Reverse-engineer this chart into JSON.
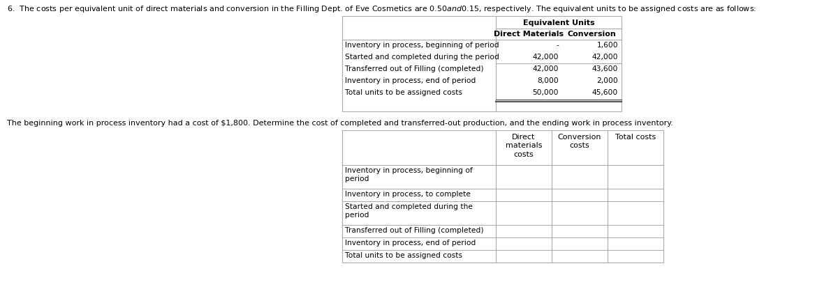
{
  "title_text": "6.  The costs per equivalent unit of direct materials and conversion in the Filling Dept. of Eve Cosmetics are $0.50 and $0.15, respectively. The equivalent units to be assigned costs are as follows:",
  "subtitle_text": "The beginning work in process inventory had a cost of $1,800. Determine the cost of completed and transferred-out production, and the ending work in process inventory.",
  "table1": {
    "eq_units_header": "Equivalent Units",
    "col_headers": [
      "Direct Materials",
      "Conversion"
    ],
    "rows": [
      [
        "Inventory in process, beginning of period",
        "-",
        "1,600"
      ],
      [
        "Started and completed during the period",
        "42,000",
        "42,000"
      ],
      [
        "Transferred out of Filling (completed)",
        "42,000",
        "43,600"
      ],
      [
        "Inventory in process, end of period",
        "8,000",
        "2,000"
      ],
      [
        "Total units to be assigned costs",
        "50,000",
        "45,600"
      ]
    ],
    "separator_after_row": 1
  },
  "table2": {
    "col_headers": [
      "Direct\nmaterials\ncosts",
      "Conversion\ncosts",
      "Total costs"
    ],
    "rows": [
      [
        "Inventory in process, beginning of\nperiod",
        "",
        "",
        ""
      ],
      [
        "Inventory in process, to complete",
        "",
        "",
        ""
      ],
      [
        "Started and completed during the\nperiod",
        "",
        "",
        ""
      ],
      [
        "Transferred out of Filling (completed)",
        "",
        "",
        ""
      ],
      [
        "Inventory in process, end of period",
        "",
        "",
        ""
      ],
      [
        "Total units to be assigned costs",
        "",
        "",
        ""
      ]
    ]
  },
  "bg_color": "#ffffff",
  "line_color": "#aaaaaa",
  "bold_line_color": "#555555",
  "text_color": "#000000",
  "font_size": 8.0,
  "header_font_size": 8.0
}
